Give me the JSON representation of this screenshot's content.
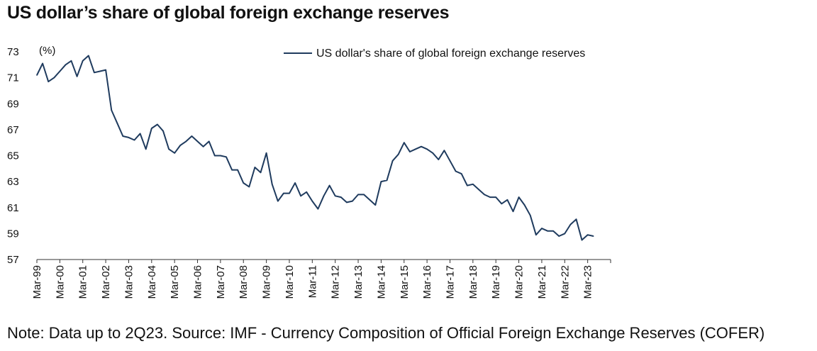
{
  "chart_data": {
    "type": "line",
    "title": "US dollar’s share of global foreign exchange reserves",
    "ylabel": "(%)",
    "xlabel": "",
    "ylim": [
      57,
      73
    ],
    "yticks": [
      57,
      59,
      61,
      63,
      65,
      67,
      69,
      71,
      73
    ],
    "xticks": [
      "Mar-99",
      "Mar-00",
      "Mar-01",
      "Mar-02",
      "Mar-03",
      "Mar-04",
      "Mar-05",
      "Mar-06",
      "Mar-07",
      "Mar-08",
      "Mar-09",
      "Mar-10",
      "Mar-11",
      "Mar-12",
      "Mar-13",
      "Mar-14",
      "Mar-15",
      "Mar-16",
      "Mar-17",
      "Mar-18",
      "Mar-19",
      "Mar-20",
      "Mar-21",
      "Mar-22",
      "Mar-23"
    ],
    "grid": false,
    "legend_position": "top-right",
    "series": [
      {
        "name": "US dollar's share of global foreign exchange reserves",
        "color": "#1f3b5e",
        "start": "1Q99",
        "frequency": "quarterly",
        "values": [
          71.2,
          72.1,
          70.7,
          71.0,
          71.5,
          72.0,
          72.3,
          71.1,
          72.3,
          72.7,
          71.4,
          71.5,
          71.6,
          68.5,
          67.5,
          66.5,
          66.4,
          66.2,
          66.7,
          65.5,
          67.1,
          67.4,
          66.9,
          65.5,
          65.2,
          65.8,
          66.1,
          66.5,
          66.1,
          65.7,
          66.1,
          65.0,
          65.0,
          64.9,
          63.9,
          63.9,
          62.9,
          62.6,
          64.1,
          63.7,
          65.2,
          62.8,
          61.5,
          62.1,
          62.1,
          62.9,
          61.9,
          62.2,
          61.5,
          60.9,
          61.9,
          62.7,
          61.9,
          61.8,
          61.4,
          61.5,
          62.0,
          62.0,
          61.6,
          61.2,
          63.0,
          63.1,
          64.6,
          65.1,
          66.0,
          65.3,
          65.5,
          65.7,
          65.5,
          65.2,
          64.7,
          65.4,
          64.6,
          63.8,
          63.6,
          62.7,
          62.8,
          62.4,
          62.0,
          61.8,
          61.8,
          61.3,
          61.6,
          60.7,
          61.8,
          61.2,
          60.4,
          58.9,
          59.4,
          59.2,
          59.2,
          58.8,
          59.0,
          59.7,
          60.1,
          58.5,
          58.9,
          58.8
        ]
      }
    ]
  },
  "footer": {
    "note": "Note: Data up to 2Q23. Source: IMF - Currency Composition of Official Foreign Exchange Reserves (COFER)"
  }
}
